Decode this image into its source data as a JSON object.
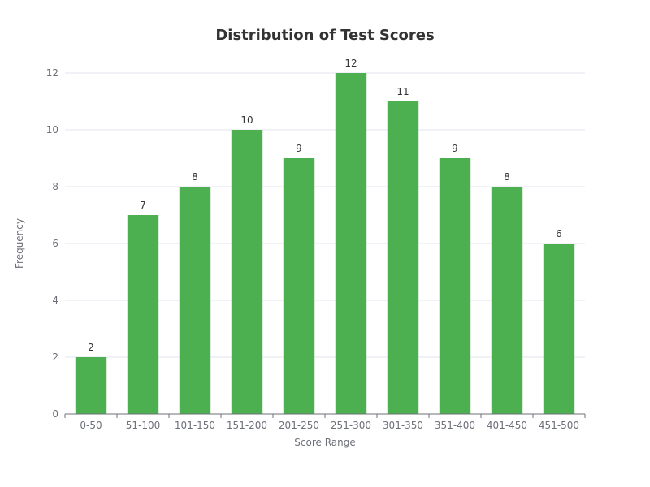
{
  "chart_data": {
    "type": "bar",
    "title": "Distribution of Test Scores",
    "xlabel": "Score Range",
    "ylabel": "Frequency",
    "categories": [
      "0-50",
      "51-100",
      "101-150",
      "151-200",
      "201-250",
      "251-300",
      "301-350",
      "351-400",
      "401-450",
      "451-500"
    ],
    "values": [
      2,
      7,
      8,
      10,
      9,
      12,
      11,
      9,
      8,
      6
    ],
    "ylim": [
      0,
      12
    ],
    "yticks": [
      0,
      2,
      4,
      6,
      8,
      10,
      12
    ],
    "grid": true,
    "legend": "none",
    "data_labels": true,
    "bar_color": "#4caf50",
    "grid_color": "#e0e6f1",
    "axis_color": "#6e7079"
  }
}
